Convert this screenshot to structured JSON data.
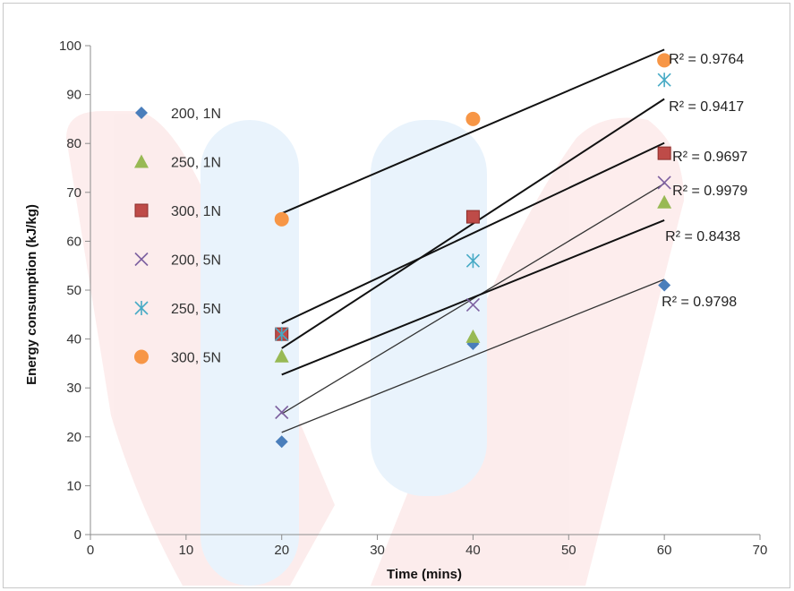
{
  "chart_data": {
    "type": "scatter",
    "title": "",
    "xlabel": "Time (mins)",
    "ylabel": "Energy consumption (kJ/kg)",
    "xlim": [
      0,
      70
    ],
    "ylim": [
      0,
      100
    ],
    "xticks": [
      0,
      10,
      20,
      30,
      40,
      50,
      60,
      70
    ],
    "yticks": [
      0,
      10,
      20,
      30,
      40,
      50,
      60,
      70,
      80,
      90,
      100
    ],
    "grid": false,
    "legend_position": "left",
    "x": [
      20,
      40,
      60
    ],
    "series": [
      {
        "name": "200, 1N",
        "marker": "diamond",
        "color": "#4a7ebb",
        "values": [
          19,
          39,
          51
        ]
      },
      {
        "name": "250, 1N",
        "marker": "triangle",
        "color": "#98b954",
        "values": [
          36.5,
          40.5,
          68
        ]
      },
      {
        "name": "300, 1N",
        "marker": "square",
        "color": "#be4b48",
        "values": [
          41,
          65,
          78
        ]
      },
      {
        "name": "200, 5N",
        "marker": "x",
        "color": "#7d60a0",
        "values": [
          25,
          47,
          72
        ]
      },
      {
        "name": "250, 5N",
        "marker": "star",
        "color": "#46aac5",
        "values": [
          41,
          56,
          93
        ]
      },
      {
        "name": "300, 5N",
        "marker": "circle",
        "color": "#f79646",
        "values": [
          64.5,
          85,
          97
        ]
      }
    ],
    "trendlines": [
      {
        "label": "R² = 0.9764",
        "x": [
          20,
          60
        ],
        "y": [
          65.7,
          99.2
        ],
        "color": "#111111",
        "width": 2
      },
      {
        "label": "R² = 0.9417",
        "x": [
          20,
          60
        ],
        "y": [
          38.1,
          89.1
        ],
        "color": "#111111",
        "width": 2
      },
      {
        "label": "R² = 0.9697",
        "x": [
          20,
          60
        ],
        "y": [
          43.2,
          80.1
        ],
        "color": "#111111",
        "width": 2
      },
      {
        "label": "R² = 0.9979",
        "x": [
          20,
          60
        ],
        "y": [
          24.7,
          71.8
        ],
        "color": "#333333",
        "width": 1.3
      },
      {
        "label": "R² = 0.8438",
        "x": [
          20,
          60
        ],
        "y": [
          32.7,
          64.3
        ],
        "color": "#111111",
        "width": 2
      },
      {
        "label": "R² = 0.9798",
        "x": [
          20,
          60
        ],
        "y": [
          20.9,
          52.2
        ],
        "color": "#333333",
        "width": 1.3
      }
    ]
  }
}
